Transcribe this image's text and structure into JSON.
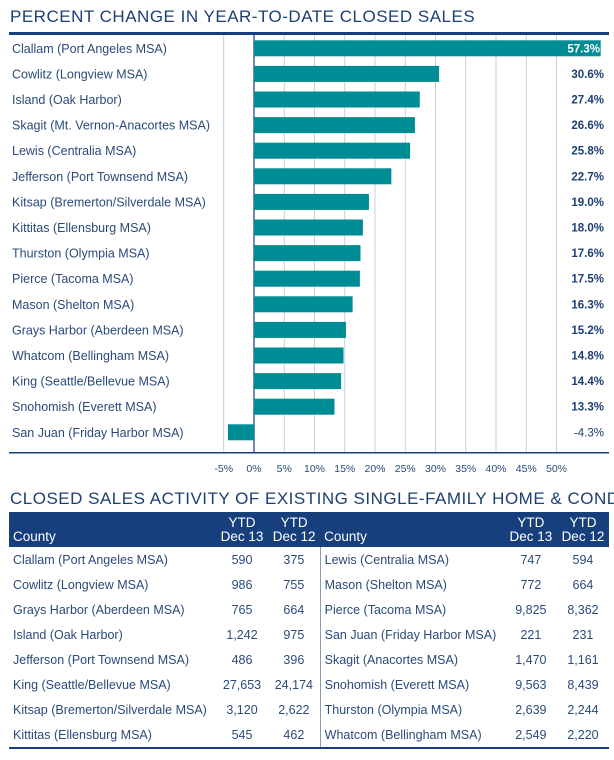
{
  "chart_data": {
    "type": "bar",
    "orientation": "horizontal",
    "title": "PERCENT CHANGE IN YEAR-TO-DATE CLOSED SALES",
    "categories": [
      "Clallam (Port Angeles MSA)",
      "Cowlitz (Longview MSA)",
      "Island (Oak Harbor)",
      "Skagit (Mt. Vernon-Anacortes MSA)",
      "Lewis (Centralia MSA)",
      "Jefferson (Port Townsend MSA)",
      "Kitsap (Bremerton/Silverdale MSA)",
      "Kittitas (Ellensburg MSA)",
      "Thurston (Olympia MSA)",
      "Pierce (Tacoma MSA)",
      "Mason (Shelton MSA)",
      "Grays Harbor (Aberdeen MSA)",
      "Whatcom (Bellingham MSA)",
      "King (Seattle/Bellevue MSA)",
      "Snohomish (Everett MSA)",
      "San Juan (Friday Harbor MSA)"
    ],
    "values": [
      57.3,
      30.6,
      27.4,
      26.6,
      25.8,
      22.7,
      19.0,
      18.0,
      17.6,
      17.5,
      16.3,
      15.2,
      14.8,
      14.4,
      13.3,
      -4.3
    ],
    "labels": [
      "57.3%",
      "30.6%",
      "27.4%",
      "26.6%",
      "25.8%",
      "22.7%",
      "19.0%",
      "18.0%",
      "17.6%",
      "17.5%",
      "16.3%",
      "15.2%",
      "14.8%",
      "14.4%",
      "13.3%",
      "-4.3%"
    ],
    "xticks": [
      "-5%",
      "0%",
      "5%",
      "10%",
      "15%",
      "20%",
      "25%",
      "30%",
      "35%",
      "40%",
      "45%",
      "50%"
    ],
    "xtick_values": [
      -5,
      0,
      5,
      10,
      15,
      20,
      25,
      30,
      35,
      40,
      45,
      50
    ],
    "xlim": [
      -5,
      57.3
    ],
    "grid": true,
    "bar_color": "#008c95"
  },
  "table": {
    "title": "CLOSED SALES ACTIVITY OF EXISTING SINGLE-FAMILY HOME & CONDO",
    "headers": {
      "county": "County",
      "ytd": "YTD",
      "dec13": "Dec 13",
      "dec12": "Dec 12"
    },
    "left": [
      [
        "Clallam (Port Angeles MSA)",
        "590",
        "375"
      ],
      [
        "Cowlitz (Longview MSA)",
        "986",
        "755"
      ],
      [
        "Grays Harbor (Aberdeen MSA)",
        "765",
        "664"
      ],
      [
        "Island (Oak Harbor)",
        "1,242",
        "975"
      ],
      [
        "Jefferson (Port Townsend MSA)",
        "486",
        "396"
      ],
      [
        "King (Seattle/Bellevue MSA)",
        "27,653",
        "24,174"
      ],
      [
        "Kitsap (Bremerton/Silverdale MSA)",
        "3,120",
        "2,622"
      ],
      [
        "Kittitas (Ellensburg MSA)",
        "545",
        "462"
      ]
    ],
    "right": [
      [
        "Lewis (Centralia MSA)",
        "747",
        "594"
      ],
      [
        "Mason (Shelton MSA)",
        "772",
        "664"
      ],
      [
        "Pierce (Tacoma MSA)",
        "9,825",
        "8,362"
      ],
      [
        "San Juan (Friday Harbor MSA)",
        "221",
        "231"
      ],
      [
        "Skagit (Anacortes MSA)",
        "1,470",
        "1,161"
      ],
      [
        "Snohomish (Everett MSA)",
        "9,563",
        "8,439"
      ],
      [
        "Thurston (Olympia MSA)",
        "2,639",
        "2,244"
      ],
      [
        "Whatcom (Bellingham MSA)",
        "2,549",
        "2,220"
      ]
    ]
  }
}
